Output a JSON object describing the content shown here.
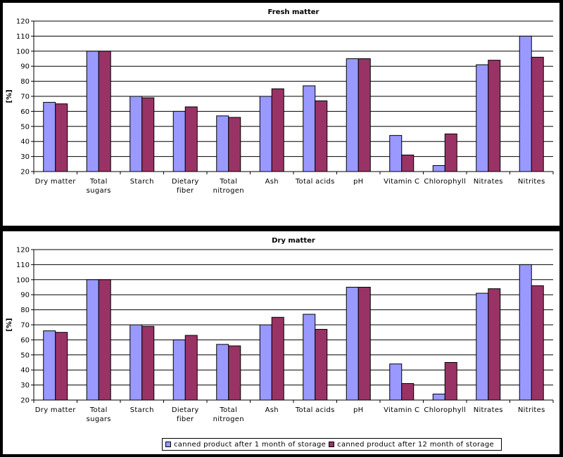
{
  "chart_data": [
    {
      "type": "bar",
      "title": "Fresh matter",
      "ylabel": "[%]",
      "ylim": [
        20,
        120
      ],
      "yticks": [
        20,
        30,
        40,
        50,
        60,
        70,
        80,
        90,
        100,
        110,
        120
      ],
      "grid": true,
      "legend": "none",
      "categories": [
        [
          "Dry matter"
        ],
        [
          "Total",
          "sugars"
        ],
        [
          "Starch"
        ],
        [
          "Dietary",
          "fiber"
        ],
        [
          "Total",
          "nitrogen"
        ],
        [
          "Ash"
        ],
        [
          "Total acids"
        ],
        [
          "pH"
        ],
        [
          "Vitamin C"
        ],
        [
          "Chlorophyll"
        ],
        [
          "Nitrates"
        ],
        [
          "Nitrites"
        ]
      ],
      "series": [
        {
          "name": "canned product after 1 month of storage",
          "color": "#9999FF",
          "values": [
            66,
            100,
            70,
            60,
            57,
            70,
            77,
            95,
            44,
            24,
            91,
            110
          ]
        },
        {
          "name": "canned product after 12 month of storage",
          "color": "#993366",
          "values": [
            65,
            100,
            69,
            63,
            56,
            75,
            67,
            95,
            31,
            45,
            94,
            96
          ]
        }
      ]
    },
    {
      "type": "bar",
      "title": "Dry matter",
      "ylabel": "[%]",
      "ylim": [
        20,
        120
      ],
      "yticks": [
        20,
        30,
        40,
        50,
        60,
        70,
        80,
        90,
        100,
        110,
        120
      ],
      "grid": true,
      "legend": "bottom",
      "categories": [
        [
          "Dry matter"
        ],
        [
          "Total",
          "sugars"
        ],
        [
          "Starch"
        ],
        [
          "Dietary",
          "fiber"
        ],
        [
          "Total",
          "nitrogen"
        ],
        [
          "Ash"
        ],
        [
          "Total acids"
        ],
        [
          "pH"
        ],
        [
          "Vitamin C"
        ],
        [
          "Chlorophyll"
        ],
        [
          "Nitrates"
        ],
        [
          "Nitrites"
        ]
      ],
      "series": [
        {
          "name": "canned product after 1 month of storage",
          "color": "#9999FF",
          "values": [
            66,
            100,
            70,
            60,
            57,
            70,
            77,
            95,
            44,
            24,
            91,
            110
          ]
        },
        {
          "name": "canned product after 12 month of storage",
          "color": "#993366",
          "values": [
            65,
            100,
            69,
            63,
            56,
            75,
            67,
            95,
            31,
            45,
            94,
            96
          ]
        }
      ]
    }
  ],
  "legend": {
    "items": [
      {
        "label": "canned product after 1 month of storage",
        "color": "#9999FF"
      },
      {
        "label": "canned product after 12 month of storage",
        "color": "#993366"
      }
    ]
  }
}
